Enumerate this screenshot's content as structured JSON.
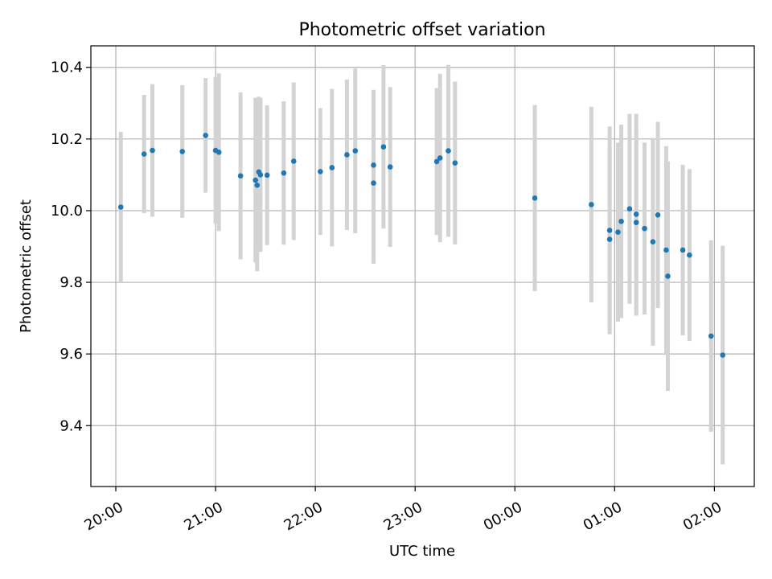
{
  "chart_data": {
    "type": "scatter",
    "title": "Photometric offset variation",
    "xlabel": "UTC time",
    "ylabel": "Photometric offset",
    "x_axis_type": "time",
    "x_ticks": [
      "20:00",
      "21:00",
      "22:00",
      "23:00",
      "00:00",
      "01:00",
      "02:00"
    ],
    "x_tick_hours": [
      20,
      21,
      22,
      23,
      24,
      25,
      26
    ],
    "xlim_hours": [
      19.75,
      26.4
    ],
    "y_ticks": [
      "9.4",
      "9.6",
      "9.8",
      "10.0",
      "10.2",
      "10.4"
    ],
    "y_tick_values": [
      9.4,
      9.6,
      9.8,
      10.0,
      10.2,
      10.4
    ],
    "ylim": [
      9.23,
      10.46
    ],
    "grid": true,
    "colors": {
      "marker": "#1f77b4",
      "errorbar": "#d3d3d3",
      "grid": "#b0b0b0"
    },
    "series": [
      {
        "x": [
          "20:03",
          "20:17",
          "20:22",
          "20:40",
          "20:54",
          "21:00",
          "21:02",
          "21:15",
          "21:24",
          "21:25",
          "21:26",
          "21:27",
          "21:31",
          "21:41",
          "21:47",
          "22:03",
          "22:10",
          "22:19",
          "22:24",
          "22:35",
          "22:35",
          "22:41",
          "22:45",
          "23:13",
          "23:15",
          "23:20",
          "23:24",
          "00:12",
          "00:46",
          "00:57",
          "00:57",
          "01:02",
          "01:04",
          "01:09",
          "01:13",
          "01:13",
          "01:18",
          "01:23",
          "01:26",
          "01:31",
          "01:32",
          "01:41",
          "01:45",
          "01:58",
          "02:05"
        ],
        "y": [
          10.01,
          10.158,
          10.168,
          10.165,
          10.21,
          10.168,
          10.163,
          10.097,
          10.085,
          10.071,
          10.108,
          10.1,
          10.099,
          10.105,
          10.138,
          10.109,
          10.12,
          10.156,
          10.167,
          10.127,
          10.077,
          10.178,
          10.122,
          10.137,
          10.147,
          10.167,
          10.133,
          10.035,
          10.017,
          9.945,
          9.92,
          9.94,
          9.97,
          10.005,
          9.967,
          9.99,
          9.95,
          9.913,
          9.988,
          9.89,
          9.817,
          9.89,
          9.876,
          9.65,
          9.597
        ],
        "yerr": [
          0.21,
          0.165,
          0.185,
          0.185,
          0.16,
          0.205,
          0.22,
          0.233,
          0.23,
          0.24,
          0.21,
          0.215,
          0.195,
          0.2,
          0.22,
          0.177,
          0.22,
          0.21,
          0.23,
          0.21,
          0.225,
          0.228,
          0.223,
          0.205,
          0.235,
          0.24,
          0.227,
          0.26,
          0.273,
          0.29,
          0.26,
          0.25,
          0.27,
          0.265,
          0.26,
          0.28,
          0.24,
          0.29,
          0.26,
          0.29,
          0.32,
          0.238,
          0.24,
          0.267,
          0.305
        ]
      }
    ]
  }
}
